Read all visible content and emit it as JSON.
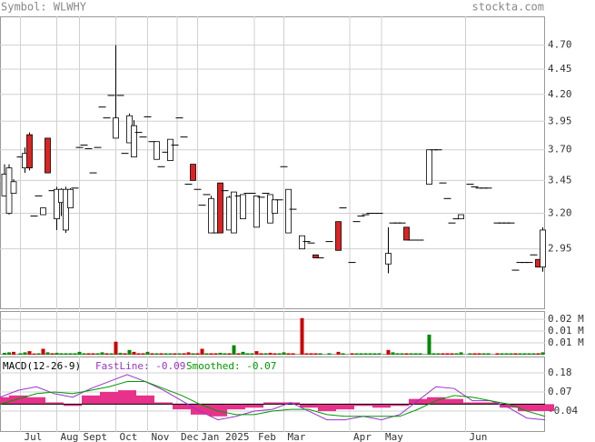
{
  "header": {
    "symbol": "Symbol: WLWHY",
    "site": "stockta.com"
  },
  "chart_data": {
    "type": "candlestick",
    "log": true,
    "grid": true,
    "up_color": "#ffffff",
    "down_color": "#dd2222",
    "xlim": [
      0,
      240
    ],
    "xticks": [
      {
        "value": 9,
        "label": "Jul"
      },
      {
        "value": 25,
        "label": "Aug"
      },
      {
        "value": 35,
        "label": "Sept"
      },
      {
        "value": 51,
        "label": "Oct"
      },
      {
        "value": 65,
        "label": "Nov"
      },
      {
        "value": 78,
        "label": "Dec"
      },
      {
        "value": 87,
        "label": "Jan 2025"
      },
      {
        "value": 112,
        "label": "Feb"
      },
      {
        "value": 125,
        "label": "Mar"
      },
      {
        "value": 154,
        "label": "Apr"
      },
      {
        "value": 168,
        "label": "May"
      },
      {
        "value": 205,
        "label": "Jun"
      }
    ],
    "ylim": [
      2.57,
      5.02
    ],
    "yticks": [
      {
        "value": 4.7,
        "label": "4.70"
      },
      4.45,
      {
        "value": 4.2,
        "label": "4.20"
      },
      3.95,
      {
        "value": 3.7,
        "label": "3.70"
      },
      3.45,
      {
        "value": 3.2,
        "label": "3.20"
      },
      2.95
    ],
    "x": [
      2,
      4,
      6,
      9,
      11,
      13,
      15,
      17,
      19,
      21,
      23,
      25,
      27,
      29,
      31,
      33,
      35,
      37,
      39,
      41,
      43,
      45,
      47,
      49,
      51,
      53,
      55,
      57,
      59,
      61,
      63,
      65,
      67,
      69,
      71,
      73,
      75,
      77,
      79,
      81,
      83,
      85,
      87,
      89,
      91,
      93,
      95,
      97,
      99,
      101,
      103,
      105,
      107,
      109,
      111,
      113,
      115,
      117,
      119,
      121,
      123,
      125,
      127,
      129,
      133,
      135,
      137,
      139,
      141,
      145,
      149,
      151,
      155,
      157,
      159,
      161,
      163,
      165,
      167,
      171,
      173,
      175,
      177,
      179,
      181,
      183,
      185,
      189,
      191,
      193,
      195,
      197,
      199,
      201,
      203,
      207,
      209,
      211,
      213,
      215,
      219,
      221,
      223,
      225,
      227,
      229,
      231,
      233,
      235,
      237,
      239
    ],
    "ohlc": [
      [
        3.33,
        3.58,
        3.33,
        3.5
      ],
      [
        3.2,
        3.58,
        3.19,
        3.55
      ],
      [
        3.35,
        3.46,
        3.35,
        3.44
      ],
      [
        3.64,
        3.64,
        3.64,
        3.64
      ],
      [
        3.55,
        3.72,
        3.51,
        3.67
      ],
      [
        3.83,
        3.85,
        3.53,
        3.55
      ],
      [
        3.18,
        3.18,
        3.18,
        3.18
      ],
      [
        3.33,
        3.33,
        3.33,
        3.33
      ],
      [
        3.19,
        3.24,
        3.19,
        3.24
      ],
      [
        3.8,
        3.8,
        3.51,
        3.51
      ],
      [
        3.37,
        3.37,
        3.37,
        3.37
      ],
      [
        3.16,
        3.4,
        3.08,
        3.38
      ],
      [
        3.28,
        3.39,
        3.18,
        3.38
      ],
      [
        3.08,
        3.4,
        3.06,
        3.38
      ],
      [
        3.24,
        3.39,
        3.24,
        3.38
      ],
      [
        3.39,
        3.39,
        3.39,
        3.39
      ],
      [
        3.72,
        3.72,
        3.72,
        3.72
      ],
      [
        3.74,
        3.74,
        3.74,
        3.74
      ],
      [
        3.71,
        3.71,
        3.71,
        3.71
      ],
      [
        3.51,
        3.51,
        3.51,
        3.51
      ],
      [
        3.72,
        3.72,
        3.72,
        3.72
      ],
      [
        4.08,
        4.08,
        4.08,
        4.08
      ],
      [
        3.98,
        3.98,
        3.98,
        3.98
      ],
      [
        4.19,
        4.19,
        4.19,
        4.19
      ],
      [
        3.8,
        4.7,
        3.8,
        3.98
      ],
      [
        4.19,
        4.19,
        4.19,
        4.19
      ],
      [
        3.67,
        3.67,
        3.67,
        3.67
      ],
      [
        3.76,
        4.02,
        3.76,
        4.0
      ],
      [
        3.64,
        3.96,
        3.64,
        3.91
      ],
      [
        3.85,
        3.85,
        3.85,
        3.85
      ],
      [
        3.81,
        3.81,
        3.81,
        3.81
      ],
      [
        3.99,
        3.99,
        3.99,
        3.99
      ],
      [
        3.77,
        3.77,
        3.77,
        3.77
      ],
      [
        3.62,
        3.77,
        3.62,
        3.77
      ],
      [
        3.56,
        3.56,
        3.56,
        3.56
      ],
      [
        3.68,
        3.68,
        3.68,
        3.68
      ],
      [
        3.61,
        3.79,
        3.61,
        3.79
      ],
      [
        3.74,
        3.74,
        3.74,
        3.74
      ],
      [
        3.98,
        3.98,
        3.98,
        3.98
      ],
      [
        3.81,
        3.81,
        3.81,
        3.81
      ],
      [
        3.42,
        3.42,
        3.42,
        3.42
      ],
      [
        3.58,
        3.58,
        3.45,
        3.45
      ],
      [
        3.38,
        3.38,
        3.38,
        3.38
      ],
      [
        3.26,
        3.26,
        3.26,
        3.26
      ],
      [
        3.34,
        3.34,
        3.34,
        3.34
      ],
      [
        3.06,
        3.33,
        3.06,
        3.31
      ],
      [
        3.06,
        3.06,
        3.06,
        3.06
      ],
      [
        3.43,
        3.43,
        3.06,
        3.06
      ],
      [
        3.37,
        3.37,
        3.37,
        3.37
      ],
      [
        3.08,
        3.33,
        3.08,
        3.32
      ],
      [
        3.06,
        3.36,
        3.06,
        3.36
      ],
      [
        3.33,
        3.33,
        3.33,
        3.33
      ],
      [
        3.16,
        3.34,
        3.16,
        3.34
      ],
      [
        3.35,
        3.35,
        3.35,
        3.35
      ],
      [
        3.35,
        3.35,
        3.35,
        3.35
      ],
      [
        3.1,
        3.33,
        3.1,
        3.33
      ],
      [
        3.32,
        3.32,
        3.32,
        3.32
      ],
      [
        3.35,
        3.35,
        3.35,
        3.35
      ],
      [
        3.13,
        3.34,
        3.13,
        3.34
      ],
      [
        3.2,
        3.3,
        3.2,
        3.3
      ],
      [
        3.3,
        3.3,
        3.3,
        3.3
      ],
      [
        3.56,
        3.56,
        3.56,
        3.56
      ],
      [
        3.06,
        3.38,
        3.06,
        3.38
      ],
      [
        3.23,
        3.23,
        3.23,
        3.23
      ],
      [
        2.95,
        3.04,
        2.95,
        3.04
      ],
      [
        3.0,
        3.0,
        3.0,
        3.0
      ],
      [
        2.99,
        2.99,
        2.99,
        2.99
      ],
      [
        2.91,
        2.91,
        2.89,
        2.89
      ],
      [
        2.89,
        2.89,
        2.89,
        2.89
      ],
      [
        3.0,
        3.0,
        3.0,
        3.0
      ],
      [
        3.14,
        3.14,
        2.94,
        2.94
      ],
      [
        3.24,
        3.24,
        3.24,
        3.24
      ],
      [
        2.86,
        2.86,
        2.86,
        2.86
      ],
      [
        3.14,
        3.14,
        3.14,
        3.14
      ],
      [
        3.18,
        3.18,
        3.18,
        3.18
      ],
      [
        3.19,
        3.19,
        3.19,
        3.19
      ],
      [
        3.2,
        3.2,
        3.2,
        3.2
      ],
      [
        3.2,
        3.2,
        3.2,
        3.2
      ],
      [
        3.2,
        3.2,
        3.2,
        3.2
      ],
      [
        2.85,
        3.1,
        2.79,
        2.92
      ],
      [
        3.13,
        3.13,
        3.13,
        3.13
      ],
      [
        3.13,
        3.13,
        3.13,
        3.13
      ],
      [
        3.13,
        3.13,
        3.13,
        3.13
      ],
      [
        3.1,
        3.1,
        3.01,
        3.01
      ],
      [
        3.01,
        3.01,
        3.01,
        3.01
      ],
      [
        3.01,
        3.01,
        3.01,
        3.01
      ],
      [
        3.01,
        3.01,
        3.01,
        3.01
      ],
      [
        3.42,
        3.7,
        3.42,
        3.7
      ],
      [
        3.7,
        3.7,
        3.7,
        3.7
      ],
      [
        3.7,
        3.7,
        3.7,
        3.7
      ],
      [
        3.43,
        3.43,
        3.43,
        3.43
      ],
      [
        3.31,
        3.31,
        3.31,
        3.31
      ],
      [
        3.13,
        3.13,
        3.13,
        3.13
      ],
      [
        3.16,
        3.16,
        3.16,
        3.16
      ],
      [
        3.16,
        3.19,
        3.16,
        3.19
      ],
      [
        3.42,
        3.42,
        3.42,
        3.42
      ],
      [
        3.4,
        3.4,
        3.4,
        3.4
      ],
      [
        3.39,
        3.39,
        3.39,
        3.39
      ],
      [
        3.39,
        3.39,
        3.39,
        3.39
      ],
      [
        3.39,
        3.39,
        3.39,
        3.39
      ],
      [
        3.13,
        3.13,
        3.13,
        3.13
      ],
      [
        3.13,
        3.13,
        3.13,
        3.13
      ],
      [
        3.13,
        3.13,
        3.13,
        3.13
      ],
      [
        3.13,
        3.13,
        3.13,
        3.13
      ],
      [
        2.81,
        2.81,
        2.81,
        2.81
      ],
      [
        2.86,
        2.86,
        2.86,
        2.86
      ],
      [
        2.86,
        2.86,
        2.86,
        2.86
      ],
      [
        2.86,
        2.86,
        2.86,
        2.86
      ],
      [
        2.91,
        2.91,
        2.91,
        2.91
      ],
      [
        2.88,
        2.88,
        2.83,
        2.83
      ],
      [
        2.83,
        3.1,
        2.8,
        3.08
      ]
    ],
    "volume": [
      0.0008,
      0.001,
      0.0012,
      0.0006,
      0.001,
      0.0015,
      0.0005,
      0.0006,
      0.0025,
      0.001,
      0.0006,
      0.0008,
      0.0006,
      0.0006,
      0.0006,
      0.0006,
      0.0012,
      0.0006,
      0.0006,
      0.0006,
      0.0006,
      0.001,
      0.0006,
      0.0006,
      0.0055,
      0.0008,
      0.0006,
      0.002,
      0.0012,
      0.0006,
      0.0006,
      0.0012,
      0.0006,
      0.0006,
      0.0006,
      0.0006,
      0.0006,
      0.0006,
      0.0006,
      0.0006,
      0.001,
      0.0006,
      0.0006,
      0.0025,
      0.0006,
      0.0006,
      0.0006,
      0.0008,
      0.0006,
      0.0006,
      0.004,
      0.0006,
      0.0012,
      0.0006,
      0.0006,
      0.0015,
      0.0006,
      0.0006,
      0.0008,
      0.0006,
      0.0006,
      0.001,
      0.0006,
      0.0006,
      0.0155,
      0.0006,
      0.0006,
      0.0006,
      0.0006,
      0.0006,
      0.0012,
      0.0006,
      0.0006,
      0.0006,
      0.0006,
      0.0006,
      0.0006,
      0.0006,
      0.0006,
      0.002,
      0.001,
      0.0006,
      0.0006,
      0.0006,
      0.0006,
      0.0006,
      0.0006,
      0.0085,
      0.0006,
      0.0006,
      0.0006,
      0.0006,
      0.0006,
      0.0006,
      0.001,
      0.0006,
      0.0006,
      0.0006,
      0.0006,
      0.0006,
      0.0006,
      0.0006,
      0.0006,
      0.0006,
      0.0006,
      0.0006,
      0.0006,
      0.0006,
      0.0006,
      0.0006,
      0.001
    ],
    "volume_up_color": "#008800",
    "volume_down_color": "#cc0000",
    "volume_ylim": [
      0,
      0.0185
    ],
    "volume_yticks": [
      {
        "value": 0.015,
        "label": "0.02 M"
      },
      {
        "value": 0.01,
        "label": "0.01 M"
      },
      {
        "value": 0.005,
        "label": "0.01 M"
      }
    ],
    "macd": {
      "title": "MACD(12-26-9)",
      "x": [
        0,
        8,
        16,
        24,
        32,
        40,
        48,
        56,
        64,
        72,
        80,
        88,
        96,
        104,
        112,
        120,
        128,
        136,
        144,
        152,
        160,
        168,
        176,
        184,
        192,
        200,
        208,
        216,
        224,
        232,
        240
      ],
      "ylim": [
        -0.16,
        0.274
      ],
      "yticks": [
        0.18,
        0.07,
        -0.04
      ],
      "series": [
        {
          "name": "FastLine: -0.09",
          "color": "#9933cc",
          "values": [
            0.04,
            0.08,
            0.1,
            0.06,
            0.04,
            0.09,
            0.13,
            0.17,
            0.13,
            0.08,
            0.02,
            -0.04,
            -0.09,
            -0.07,
            -0.04,
            -0.03,
            0.01,
            -0.04,
            -0.09,
            -0.09,
            -0.07,
            -0.09,
            -0.06,
            0.02,
            0.1,
            0.09,
            0.02,
            0.02,
            -0.02,
            -0.08,
            -0.09
          ]
        },
        {
          "name": "Smoothed: -0.07",
          "color": "#009900",
          "values": [
            0.0,
            0.03,
            0.06,
            0.07,
            0.06,
            0.08,
            0.1,
            0.13,
            0.13,
            0.09,
            0.05,
            0.0,
            -0.04,
            -0.06,
            -0.06,
            -0.04,
            -0.03,
            -0.03,
            -0.06,
            -0.07,
            -0.07,
            -0.07,
            -0.07,
            -0.03,
            0.02,
            0.05,
            0.04,
            0.02,
            0.0,
            -0.04,
            -0.07
          ]
        }
      ],
      "histogram": {
        "color": "#e8318a",
        "values": [
          0.04,
          0.05,
          0.04,
          0.01,
          -0.01,
          0.05,
          0.07,
          0.08,
          0.05,
          0.01,
          -0.03,
          -0.06,
          -0.07,
          -0.03,
          -0.02,
          0.01,
          0.01,
          -0.02,
          -0.04,
          -0.03,
          -0.01,
          -0.02,
          -0.01,
          0.03,
          0.04,
          0.03,
          0.01,
          0.01,
          -0.02,
          -0.04,
          -0.04
        ]
      }
    }
  }
}
